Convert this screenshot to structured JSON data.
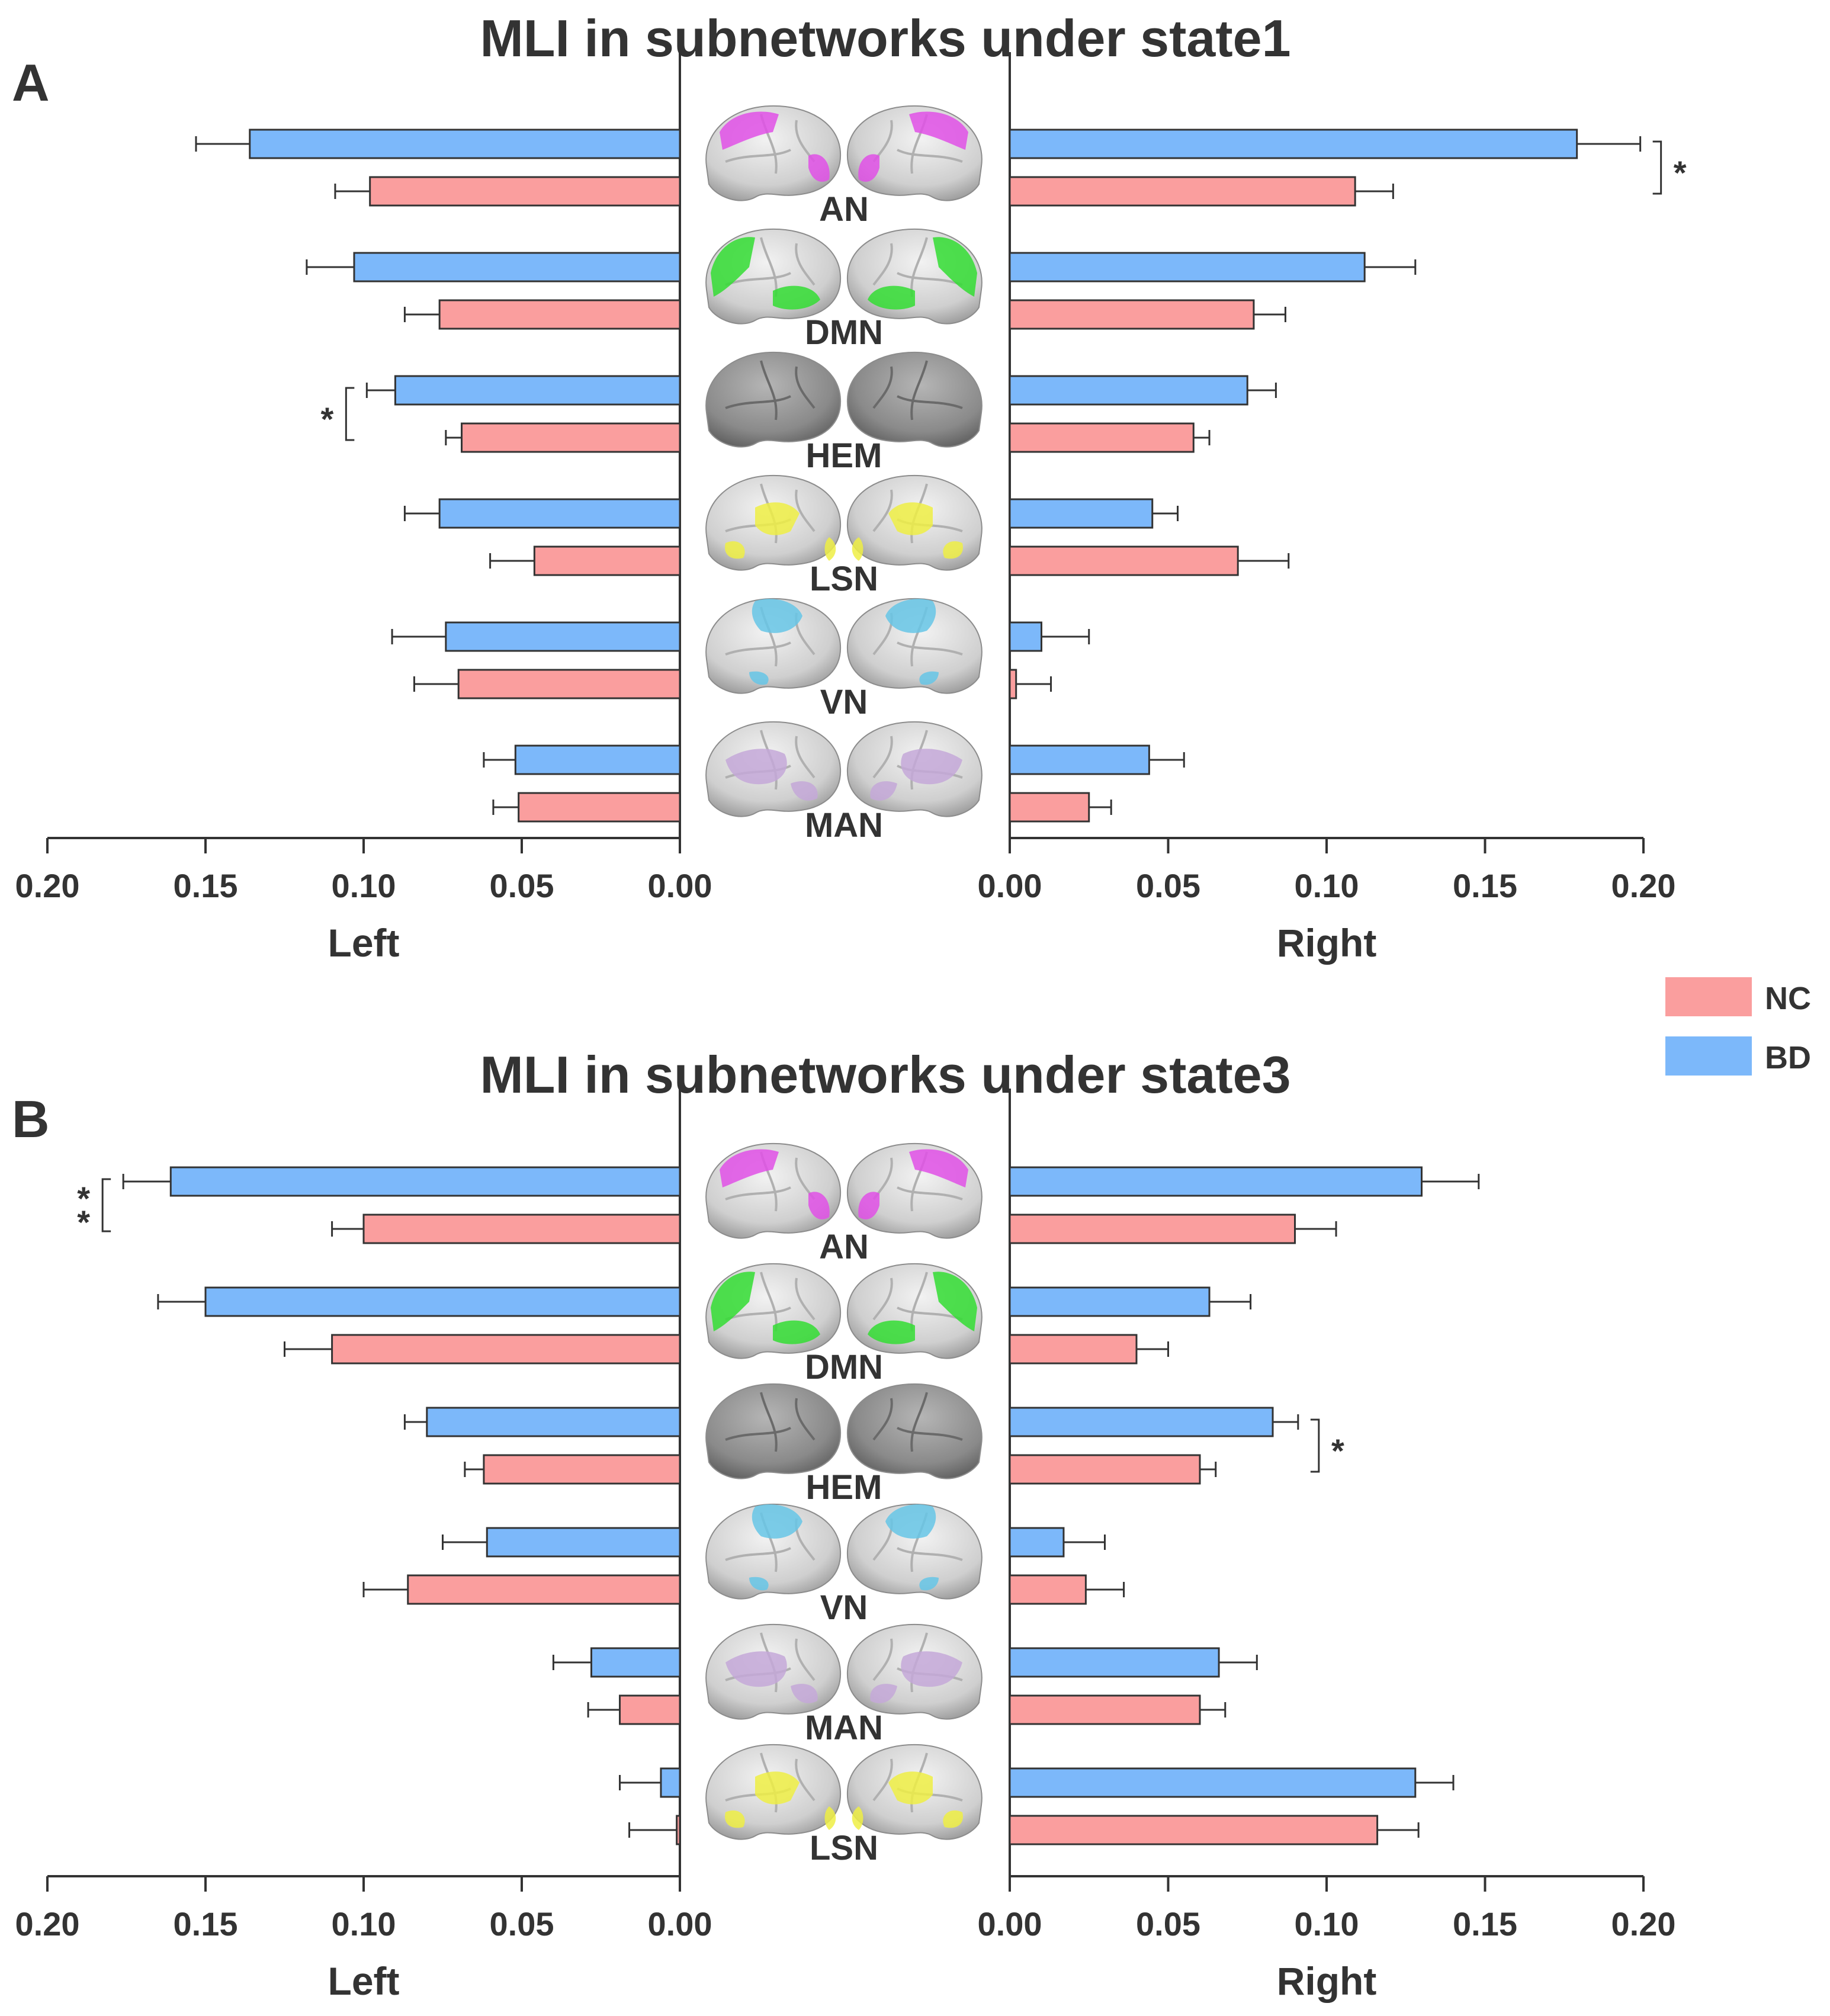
{
  "chart_data": [
    {
      "panel": "A",
      "type": "bar",
      "orientation": "horizontal-mirrored",
      "title": "MLI in subnetworks under state1",
      "categories": [
        "AN",
        "DMN",
        "HEM",
        "LSN",
        "VN",
        "MAN"
      ],
      "left": {
        "xlabel": "Left",
        "xlim": [
          0.2,
          0
        ],
        "ticks": [
          "0.20",
          "0.15",
          "0.10",
          "0.05",
          "0.00"
        ],
        "series": [
          {
            "name": "BD",
            "values": [
              0.136,
              0.103,
              0.09,
              0.076,
              0.074,
              0.052
            ],
            "errors": [
              0.017,
              0.015,
              0.009,
              0.011,
              0.017,
              0.01
            ]
          },
          {
            "name": "NC",
            "values": [
              0.098,
              0.076,
              0.069,
              0.046,
              0.07,
              0.051
            ],
            "errors": [
              0.011,
              0.011,
              0.005,
              0.014,
              0.014,
              0.008
            ]
          }
        ],
        "significance": [
          {
            "category": "HEM",
            "label": "*"
          }
        ]
      },
      "right": {
        "xlabel": "Right",
        "xlim": [
          0,
          0.2
        ],
        "ticks": [
          "0.00",
          "0.05",
          "0.10",
          "0.15",
          "0.20"
        ],
        "series": [
          {
            "name": "BD",
            "values": [
              0.179,
              0.112,
              0.075,
              0.045,
              0.01,
              0.044
            ],
            "errors": [
              0.02,
              0.016,
              0.009,
              0.008,
              0.015,
              0.011
            ]
          },
          {
            "name": "NC",
            "values": [
              0.109,
              0.077,
              0.058,
              0.072,
              0.002,
              0.025
            ],
            "errors": [
              0.012,
              0.01,
              0.005,
              0.016,
              0.011,
              0.007
            ]
          }
        ],
        "significance": [
          {
            "category": "AN",
            "label": "*"
          }
        ]
      }
    },
    {
      "panel": "B",
      "type": "bar",
      "orientation": "horizontal-mirrored",
      "title": "MLI in subnetworks under state3",
      "categories": [
        "AN",
        "DMN",
        "HEM",
        "VN",
        "MAN",
        "LSN"
      ],
      "left": {
        "xlabel": "Left",
        "xlim": [
          0.2,
          0
        ],
        "ticks": [
          "0.20",
          "0.15",
          "0.10",
          "0.05",
          "0.00"
        ],
        "series": [
          {
            "name": "BD",
            "values": [
              0.161,
              0.15,
              0.08,
              0.061,
              0.028,
              0.006
            ],
            "errors": [
              0.015,
              0.015,
              0.007,
              0.014,
              0.012,
              0.013
            ]
          },
          {
            "name": "NC",
            "values": [
              0.1,
              0.11,
              0.062,
              0.086,
              0.019,
              0.001
            ],
            "errors": [
              0.01,
              0.015,
              0.006,
              0.014,
              0.01,
              0.015
            ]
          }
        ],
        "significance": [
          {
            "category": "AN",
            "label": "**"
          }
        ]
      },
      "right": {
        "xlabel": "Right",
        "xlim": [
          0,
          0.2
        ],
        "ticks": [
          "0.00",
          "0.05",
          "0.10",
          "0.15",
          "0.20"
        ],
        "series": [
          {
            "name": "BD",
            "values": [
              0.13,
              0.063,
              0.083,
              0.017,
              0.066,
              0.128
            ],
            "errors": [
              0.018,
              0.013,
              0.008,
              0.013,
              0.012,
              0.012
            ]
          },
          {
            "name": "NC",
            "values": [
              0.09,
              0.04,
              0.06,
              0.024,
              0.06,
              0.116
            ],
            "errors": [
              0.013,
              0.01,
              0.005,
              0.012,
              0.008,
              0.013
            ]
          }
        ],
        "significance": [
          {
            "category": "HEM",
            "label": "*"
          }
        ]
      }
    }
  ],
  "legend": {
    "items": [
      {
        "name": "NC",
        "color": "#fa9e9e"
      },
      {
        "name": "BD",
        "color": "#7cb8fa"
      }
    ]
  },
  "colors": {
    "NC": "#fa9e9e",
    "BD": "#7cb8fa",
    "AN": "#e050e6",
    "DMN": "#33dd33",
    "HEM": "#8a8a8a",
    "LSN": "#eeee44",
    "VN": "#66c6e6",
    "MAN": "#c4a8d8",
    "text": "#333333"
  }
}
